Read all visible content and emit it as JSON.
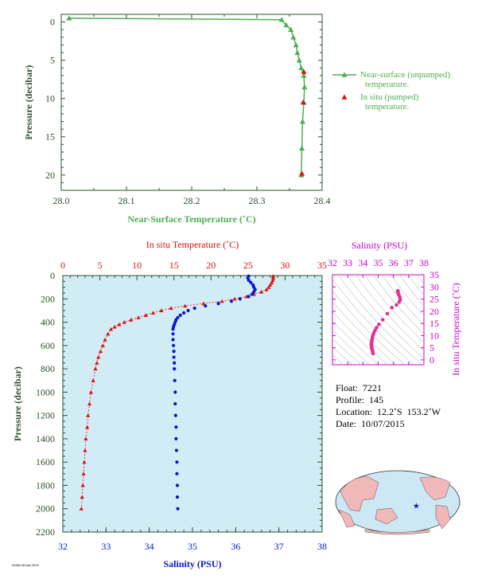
{
  "colors": {
    "green": "#4caf50",
    "red": "#e01010",
    "blue": "#0a18c8",
    "magenta": "#cc00cc",
    "axis_dark": "#2f4f2f",
    "panel_bg": "#d2ecf6",
    "map_land": "#f0b8b8",
    "map_ocean": "#cde8f4"
  },
  "float_info": {
    "float_label": "Float:  7221",
    "profile_label": "Profile:  145",
    "location_label": "Location:  12.2˚S  153.2˚W",
    "date_label": "Date:  10/07/2015"
  },
  "credit": "AOML/NOAA 2015",
  "chart_data": [
    {
      "type": "line",
      "xlabel": "Near-Surface Temperature (˚C)",
      "ylabel": "Pressure (decibar)",
      "xlim": [
        28.0,
        28.4
      ],
      "ylim": [
        22,
        -1
      ],
      "xticks": [
        "28.0",
        "28.1",
        "28.2",
        "28.3",
        "28.4"
      ],
      "yticks": [
        "0",
        "5",
        "10",
        "15",
        "20"
      ],
      "legend_position": "right",
      "series": [
        {
          "name": "Near-surface (unpumped) temperature.",
          "x": [
            28.012,
            28.338,
            28.345,
            28.352,
            28.356,
            28.36,
            28.362,
            28.365,
            28.368,
            28.372,
            28.373,
            28.372,
            28.37,
            28.369,
            28.368
          ],
          "y": [
            -0.5,
            -0.3,
            0.4,
            1.0,
            2.0,
            3.0,
            4.0,
            5.0,
            6.0,
            7.0,
            8.5,
            10.5,
            13.0,
            16.5,
            20.0
          ]
        },
        {
          "name": "In situ (pumped) temperature.",
          "x": [
            28.372,
            28.371,
            28.369
          ],
          "y": [
            6.5,
            10.5,
            19.8
          ]
        }
      ]
    },
    {
      "type": "line",
      "xlabel_top": "In situ Temperature (˚C)",
      "xlabel_bottom": "Salinity (PSU)",
      "ylabel": "Pressure (decibar)",
      "temp_xlim": [
        0,
        35
      ],
      "sal_xlim": [
        32,
        38
      ],
      "ylim": [
        2200,
        0
      ],
      "temp_ticks": [
        "0",
        "5",
        "10",
        "15",
        "20",
        "25",
        "30",
        "35"
      ],
      "sal_ticks": [
        "32",
        "33",
        "34",
        "35",
        "36",
        "37",
        "38"
      ],
      "yticks": [
        "0",
        "200",
        "400",
        "600",
        "800",
        "1000",
        "1200",
        "1400",
        "1600",
        "1800",
        "2000",
        "2200"
      ],
      "temperature": {
        "pressure": [
          5,
          20,
          40,
          60,
          80,
          100,
          120,
          140,
          160,
          180,
          200,
          220,
          240,
          260,
          280,
          300,
          320,
          340,
          360,
          380,
          400,
          420,
          440,
          460,
          500,
          550,
          600,
          650,
          700,
          750,
          800,
          900,
          1000,
          1100,
          1200,
          1300,
          1400,
          1500,
          1600,
          1700,
          1800,
          1900,
          2000
        ],
        "values": [
          28.4,
          28.4,
          28.35,
          28.2,
          28.0,
          27.8,
          27.5,
          26.8,
          25.8,
          24.8,
          23.2,
          21.5,
          19.0,
          16.5,
          14.6,
          13.3,
          12.2,
          11.2,
          10.2,
          9.2,
          8.3,
          7.6,
          7.0,
          6.5,
          6.1,
          5.7,
          5.4,
          5.1,
          4.8,
          4.6,
          4.4,
          4.1,
          3.8,
          3.6,
          3.4,
          3.3,
          3.1,
          3.0,
          2.9,
          2.8,
          2.7,
          2.6,
          2.5
        ]
      },
      "salinity": {
        "pressure": [
          5,
          20,
          40,
          60,
          80,
          100,
          120,
          140,
          160,
          180,
          200,
          220,
          240,
          260,
          280,
          300,
          320,
          340,
          360,
          380,
          400,
          420,
          440,
          460,
          500,
          550,
          600,
          650,
          700,
          750,
          800,
          900,
          1000,
          1100,
          1200,
          1300,
          1400,
          1500,
          1600,
          1700,
          1800,
          1900,
          2000
        ],
        "values": [
          36.3,
          36.28,
          36.3,
          36.35,
          36.4,
          36.42,
          36.45,
          36.42,
          36.38,
          36.3,
          36.1,
          35.9,
          35.6,
          35.3,
          35.05,
          34.9,
          34.8,
          34.72,
          34.66,
          34.62,
          34.6,
          34.58,
          34.56,
          34.55,
          34.55,
          34.55,
          34.56,
          34.57,
          34.57,
          34.58,
          34.58,
          34.59,
          34.6,
          34.6,
          34.61,
          34.62,
          34.62,
          34.63,
          34.64,
          34.64,
          34.65,
          34.65,
          34.66
        ]
      }
    },
    {
      "type": "scatter",
      "xlabel": "Salinity (PSU)",
      "ylabel": "In situ Temperature (˚C)",
      "xlim": [
        32,
        38
      ],
      "ylim": [
        -2,
        35
      ],
      "xticks": [
        "32",
        "33",
        "34",
        "35",
        "36",
        "37",
        "38"
      ],
      "yticks": [
        "0",
        "5",
        "10",
        "15",
        "20",
        "25",
        "30",
        "35"
      ],
      "points": {
        "salinity": [
          36.3,
          36.28,
          36.3,
          36.35,
          36.42,
          36.45,
          36.38,
          36.2,
          35.9,
          35.6,
          35.3,
          35.05,
          34.9,
          34.8,
          34.72,
          34.66,
          34.62,
          34.6,
          34.58,
          34.56,
          34.55,
          34.55,
          34.56,
          34.57,
          34.58,
          34.59,
          34.6,
          34.62,
          34.64,
          34.66
        ],
        "temperature": [
          28.4,
          28.2,
          27.8,
          26.8,
          25.8,
          24.8,
          23.8,
          22.6,
          21.5,
          19.0,
          16.5,
          14.6,
          13.3,
          12.2,
          11.2,
          10.2,
          9.2,
          8.3,
          7.6,
          7.0,
          6.5,
          6.1,
          5.7,
          5.4,
          5.1,
          4.8,
          4.4,
          3.8,
          3.3,
          2.6
        ]
      }
    }
  ]
}
